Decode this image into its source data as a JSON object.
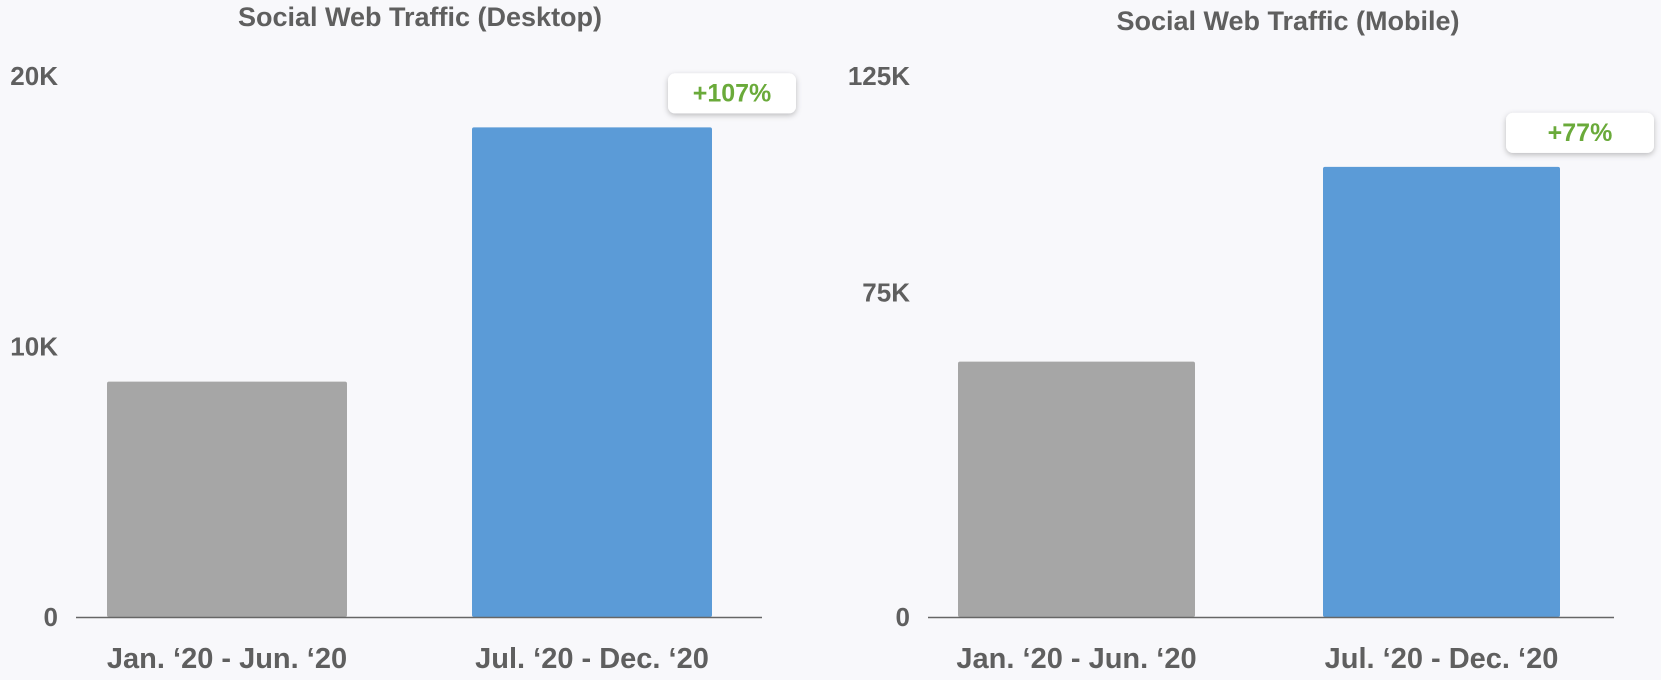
{
  "chart_data": [
    {
      "type": "bar",
      "title": "Social Web Traffic (Desktop)",
      "categories": [
        "Jan. ‘20 - Jun. ‘20",
        "Jul. ‘20 - Dec. ‘20"
      ],
      "values": [
        8700,
        18100
      ],
      "bar_colors": [
        "#a6a6a6",
        "#5b9bd7"
      ],
      "yticks": [
        0,
        10000,
        20000
      ],
      "ytick_labels": [
        "0",
        "10K",
        "20K"
      ],
      "ylim": [
        0,
        20000
      ],
      "grid": false,
      "annotation": {
        "text": "+107%",
        "bar_index": 1,
        "color": "#6aaa3a"
      }
    },
    {
      "type": "bar",
      "title": "Social Web Traffic (Mobile)",
      "categories": [
        "Jan. ‘20 - Jun. ‘20",
        "Jul. ‘20 - Dec. ‘20"
      ],
      "values": [
        59000,
        104000
      ],
      "bar_colors": [
        "#a6a6a6",
        "#5b9bd7"
      ],
      "yticks": [
        0,
        75000,
        125000
      ],
      "ytick_labels": [
        "0",
        "75K",
        "125K"
      ],
      "ylim": [
        0,
        125000
      ],
      "grid": false,
      "annotation": {
        "text": "+77%",
        "bar_index": 1,
        "color": "#6aaa3a"
      }
    }
  ]
}
